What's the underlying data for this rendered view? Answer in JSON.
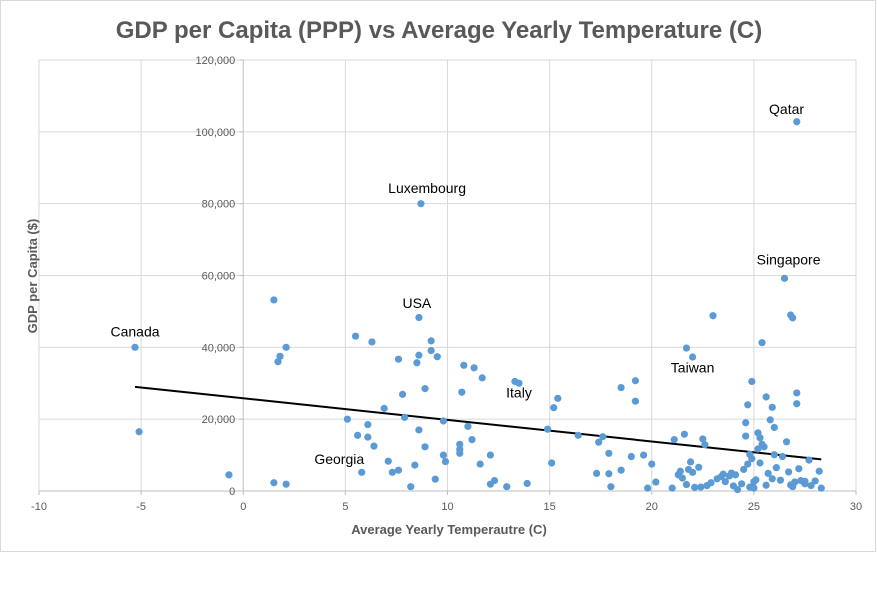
{
  "chart_data": {
    "type": "scatter",
    "title": "GDP per Capita (PPP) vs Average Yearly Temperature (C)",
    "xlabel": "Average Yearly Temperautre (C)",
    "ylabel": "GDP per Capita ($)",
    "xlim": [
      -10,
      30
    ],
    "ylim": [
      0,
      120000
    ],
    "x_ticks": [
      -10,
      -5,
      0,
      5,
      10,
      15,
      20,
      25,
      30
    ],
    "y_ticks": [
      0,
      20000,
      40000,
      60000,
      80000,
      100000,
      120000
    ],
    "x_tick_labels": [
      "-10",
      "-5",
      "0",
      "5",
      "10",
      "15",
      "20",
      "25",
      "30"
    ],
    "y_tick_labels": [
      "0",
      "20,000",
      "40,000",
      "60,000",
      "80,000",
      "100,000",
      "120,000"
    ],
    "grid": true,
    "legend": "none",
    "marker_color": "#5b9bd5",
    "trendline": {
      "type": "linear",
      "x": [
        -5.3,
        28.3
      ],
      "y": [
        29000,
        8800
      ],
      "color": "#000000"
    },
    "annotations": [
      {
        "text": "Qatar",
        "x": 26.6,
        "y": 105000
      },
      {
        "text": "Luxembourg",
        "x": 9.0,
        "y": 83000
      },
      {
        "text": "Singapore",
        "x": 26.7,
        "y": 63000
      },
      {
        "text": "USA",
        "x": 8.5,
        "y": 51000
      },
      {
        "text": "Canada",
        "x": -5.3,
        "y": 43000
      },
      {
        "text": "Taiwan",
        "x": 22.0,
        "y": 33000
      },
      {
        "text": "Italy",
        "x": 13.5,
        "y": 26000
      },
      {
        "text": "Georgia",
        "x": 4.7,
        "y": 7500
      }
    ],
    "points": [
      [
        -5.3,
        40000
      ],
      [
        -5.1,
        16500
      ],
      [
        -0.7,
        4500
      ],
      [
        1.5,
        53200
      ],
      [
        1.5,
        2300
      ],
      [
        1.7,
        36000
      ],
      [
        1.8,
        37500
      ],
      [
        2.1,
        1900
      ],
      [
        2.1,
        40000
      ],
      [
        5.1,
        20000
      ],
      [
        5.5,
        43100
      ],
      [
        5.6,
        15500
      ],
      [
        5.8,
        5200
      ],
      [
        6.1,
        15000
      ],
      [
        6.1,
        18500
      ],
      [
        6.3,
        41500
      ],
      [
        6.4,
        12500
      ],
      [
        6.9,
        23000
      ],
      [
        7.1,
        8300
      ],
      [
        7.3,
        5200
      ],
      [
        7.6,
        5800
      ],
      [
        7.6,
        36700
      ],
      [
        7.8,
        26900
      ],
      [
        7.9,
        20500
      ],
      [
        8.2,
        1200
      ],
      [
        8.4,
        7200
      ],
      [
        8.5,
        35700
      ],
      [
        8.6,
        37800
      ],
      [
        8.6,
        17000
      ],
      [
        8.6,
        48300
      ],
      [
        8.7,
        80000
      ],
      [
        8.9,
        12300
      ],
      [
        8.9,
        28500
      ],
      [
        9.2,
        41800
      ],
      [
        9.2,
        39100
      ],
      [
        9.4,
        3300
      ],
      [
        9.5,
        37400
      ],
      [
        9.8,
        10000
      ],
      [
        9.8,
        19500
      ],
      [
        9.9,
        8200
      ],
      [
        10.6,
        11600
      ],
      [
        10.6,
        10500
      ],
      [
        10.6,
        13000
      ],
      [
        10.7,
        27500
      ],
      [
        10.8,
        35000
      ],
      [
        11.0,
        18000
      ],
      [
        11.2,
        14300
      ],
      [
        11.3,
        34300
      ],
      [
        11.6,
        7500
      ],
      [
        11.7,
        31500
      ],
      [
        12.1,
        1900
      ],
      [
        12.1,
        10000
      ],
      [
        12.3,
        2900
      ],
      [
        12.9,
        1200
      ],
      [
        13.3,
        30500
      ],
      [
        13.5,
        30000
      ],
      [
        13.9,
        2100
      ],
      [
        14.9,
        17200
      ],
      [
        15.1,
        7800
      ],
      [
        15.2,
        23200
      ],
      [
        15.4,
        25800
      ],
      [
        16.4,
        15500
      ],
      [
        17.3,
        4900
      ],
      [
        17.4,
        13600
      ],
      [
        17.6,
        15100
      ],
      [
        17.9,
        4800
      ],
      [
        17.9,
        10500
      ],
      [
        18.0,
        1200
      ],
      [
        18.5,
        28800
      ],
      [
        18.5,
        5800
      ],
      [
        19.0,
        9600
      ],
      [
        19.2,
        30700
      ],
      [
        19.2,
        25000
      ],
      [
        19.6,
        10000
      ],
      [
        19.8,
        800
      ],
      [
        20.0,
        7500
      ],
      [
        20.2,
        2500
      ],
      [
        21.0,
        800
      ],
      [
        21.1,
        14300
      ],
      [
        21.3,
        4500
      ],
      [
        21.4,
        5500
      ],
      [
        21.5,
        3600
      ],
      [
        21.6,
        15800
      ],
      [
        21.7,
        39800
      ],
      [
        21.7,
        1800
      ],
      [
        21.8,
        6000
      ],
      [
        21.9,
        8100
      ],
      [
        22.0,
        37300
      ],
      [
        22.0,
        5200
      ],
      [
        22.1,
        1000
      ],
      [
        22.3,
        6600
      ],
      [
        22.5,
        14500
      ],
      [
        22.6,
        12900
      ],
      [
        22.7,
        1500
      ],
      [
        22.9,
        2300
      ],
      [
        23.0,
        48800
      ],
      [
        23.2,
        3400
      ],
      [
        23.4,
        4000
      ],
      [
        23.5,
        4700
      ],
      [
        23.6,
        2600
      ],
      [
        23.9,
        5000
      ],
      [
        24.0,
        1400
      ],
      [
        24.1,
        4500
      ],
      [
        24.2,
        400
      ],
      [
        24.4,
        2000
      ],
      [
        24.5,
        6000
      ],
      [
        24.6,
        15300
      ],
      [
        24.6,
        19000
      ],
      [
        24.7,
        24000
      ],
      [
        24.7,
        7500
      ],
      [
        24.8,
        10200
      ],
      [
        24.9,
        9000
      ],
      [
        24.9,
        30500
      ],
      [
        25.0,
        2600
      ],
      [
        25.0,
        800
      ],
      [
        25.1,
        3100
      ],
      [
        25.2,
        11700
      ],
      [
        25.2,
        16200
      ],
      [
        25.3,
        14800
      ],
      [
        25.3,
        7800
      ],
      [
        25.4,
        41300
      ],
      [
        25.4,
        13000
      ],
      [
        25.5,
        12300
      ],
      [
        25.6,
        26200
      ],
      [
        25.6,
        1600
      ],
      [
        25.7,
        4900
      ],
      [
        25.8,
        19800
      ],
      [
        25.9,
        23300
      ],
      [
        26.0,
        17700
      ],
      [
        26.0,
        10100
      ],
      [
        26.1,
        6500
      ],
      [
        26.3,
        3000
      ],
      [
        26.4,
        9600
      ],
      [
        26.5,
        59200
      ],
      [
        26.6,
        13700
      ],
      [
        26.7,
        5300
      ],
      [
        26.8,
        49000
      ],
      [
        26.9,
        48200
      ],
      [
        26.9,
        1200
      ],
      [
        27.0,
        2500
      ],
      [
        27.1,
        102800
      ],
      [
        27.1,
        24300
      ],
      [
        27.1,
        27300
      ],
      [
        27.2,
        6200
      ],
      [
        27.3,
        2900
      ],
      [
        27.5,
        2000
      ],
      [
        27.7,
        8600
      ],
      [
        27.8,
        1500
      ],
      [
        28.0,
        2800
      ],
      [
        28.2,
        5500
      ],
      [
        28.3,
        800
      ],
      [
        26.8,
        1700
      ],
      [
        25.9,
        3400
      ],
      [
        24.8,
        1100
      ],
      [
        23.8,
        4200
      ],
      [
        22.4,
        1100
      ],
      [
        27.5,
        2700
      ]
    ]
  }
}
